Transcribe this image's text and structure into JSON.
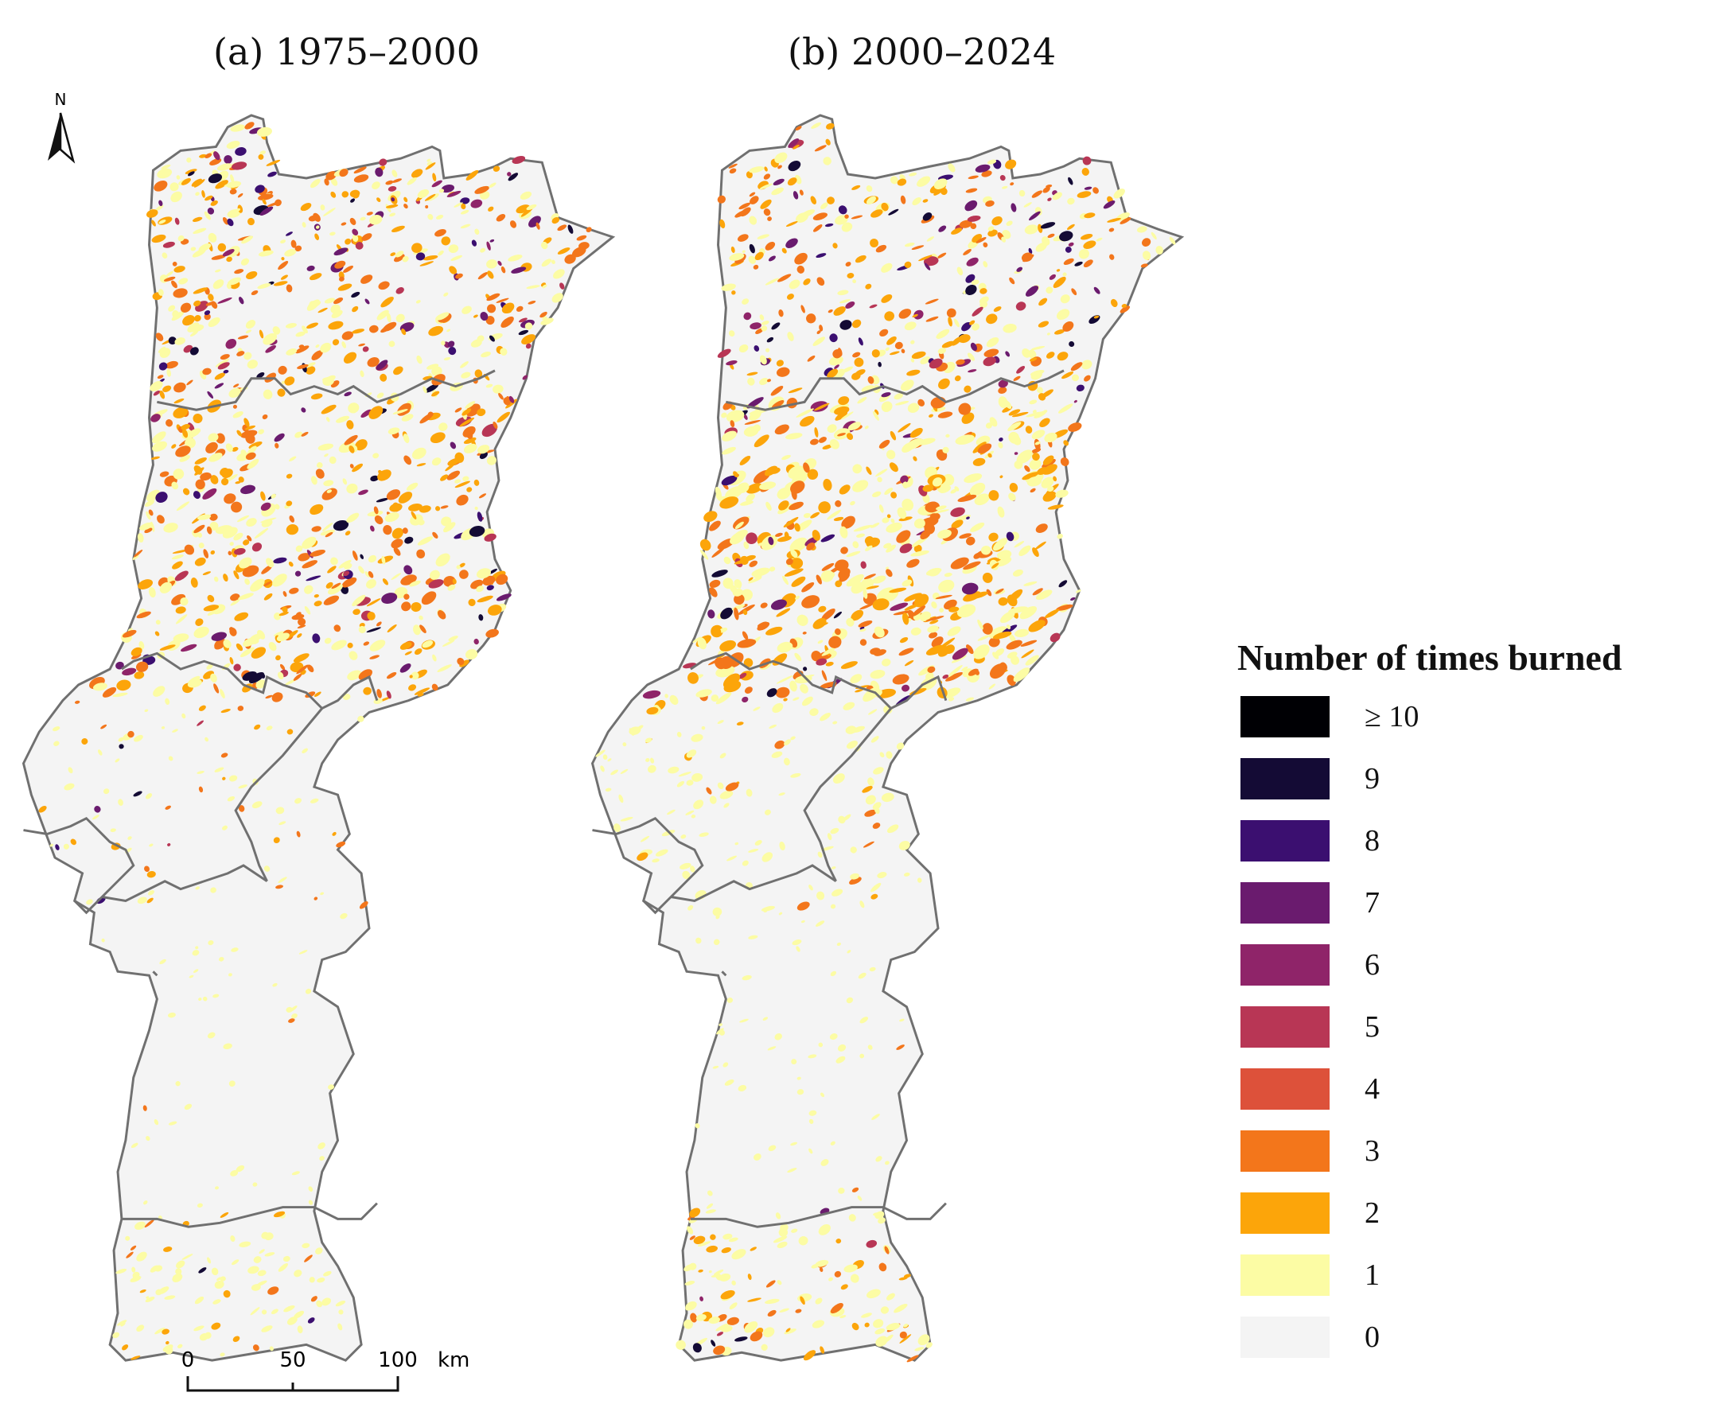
{
  "panels": [
    {
      "title": "(a) 1975–2000"
    },
    {
      "title": "(b) 2000–2024"
    }
  ],
  "north_label": "N",
  "scale": {
    "ticks": [
      "0",
      "50",
      "100"
    ],
    "unit": "km"
  },
  "legend": {
    "title": "Number of times burned",
    "items": [
      {
        "label": "≥ 10",
        "color": "#000004"
      },
      {
        "label": "9",
        "color": "#140b35"
      },
      {
        "label": "8",
        "color": "#3b0f70"
      },
      {
        "label": "7",
        "color": "#6a1b6e"
      },
      {
        "label": "6",
        "color": "#8f2469"
      },
      {
        "label": "5",
        "color": "#b83655"
      },
      {
        "label": "4",
        "color": "#dd513a"
      },
      {
        "label": "3",
        "color": "#f3761b"
      },
      {
        "label": "2",
        "color": "#fca50a"
      },
      {
        "label": "1",
        "color": "#fcfca4"
      },
      {
        "label": "0",
        "color": "#f4f4f4"
      }
    ]
  }
}
